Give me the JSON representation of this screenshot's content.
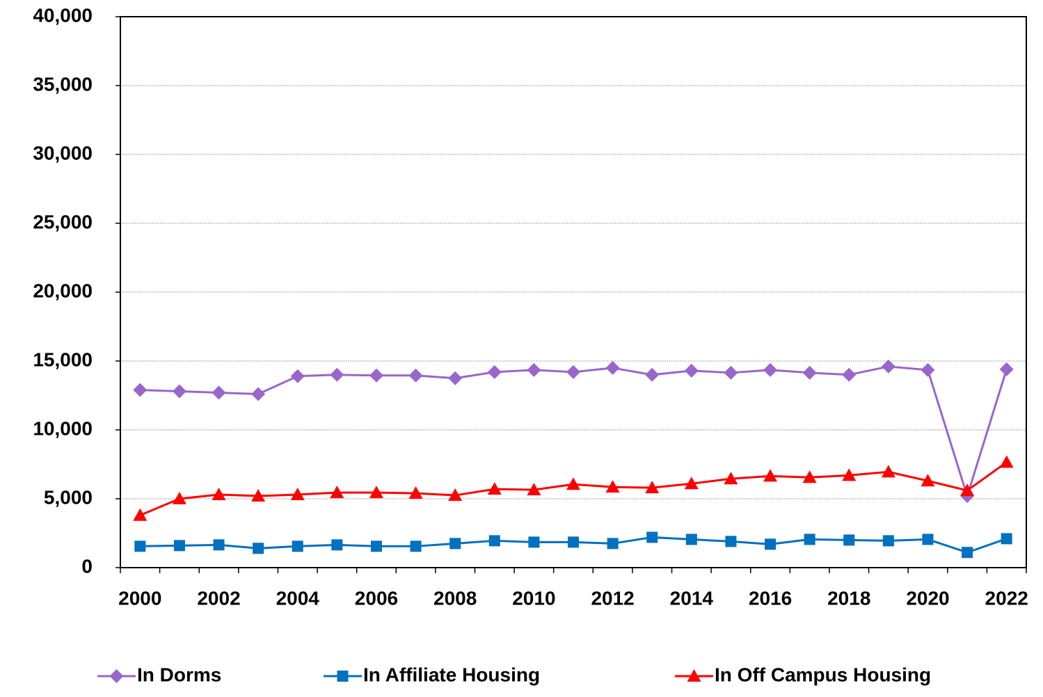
{
  "chart_data": {
    "type": "line",
    "categories": [
      "2000",
      null,
      "2002",
      null,
      "2004",
      null,
      "2006",
      null,
      "2008",
      null,
      "2010",
      null,
      "2012",
      null,
      "2014",
      null,
      "2016",
      null,
      "2018",
      null,
      "2020",
      null,
      "2022"
    ],
    "series": [
      {
        "name": "In Dorms",
        "color": "#9966cc",
        "marker": "diamond",
        "values": [
          12900,
          12800,
          12700,
          12600,
          13900,
          14000,
          13950,
          13950,
          13750,
          14200,
          14350,
          14200,
          14500,
          14000,
          14300,
          14150,
          14350,
          14150,
          14000,
          14600,
          14350,
          5200,
          14400
        ]
      },
      {
        "name": "In Affiliate Housing",
        "color": "#0070c0",
        "marker": "square",
        "values": [
          1550,
          1600,
          1650,
          1400,
          1550,
          1650,
          1550,
          1550,
          1750,
          1950,
          1850,
          1850,
          1750,
          2200,
          2050,
          1900,
          1700,
          2050,
          2000,
          1950,
          2050,
          1100,
          2100
        ]
      },
      {
        "name": "In Off Campus Housing",
        "color": "#ff0000",
        "marker": "triangle",
        "values": [
          3800,
          5000,
          5300,
          5200,
          5300,
          5450,
          5450,
          5400,
          5250,
          5700,
          5650,
          6050,
          5850,
          5800,
          6100,
          6450,
          6650,
          6550,
          6700,
          6950,
          6300,
          5600,
          7650
        ]
      }
    ],
    "ylim": [
      0,
      40000
    ],
    "yticks": [
      0,
      {
        "value": 5000,
        "label": "5,000"
      },
      {
        "value": 10000,
        "label": "10,000"
      },
      {
        "value": 15000,
        "label": "15,000"
      },
      {
        "value": 20000,
        "label": "20,000"
      },
      {
        "value": 25000,
        "label": "25,000"
      },
      {
        "value": 30000,
        "label": "30,000"
      },
      {
        "value": 35000,
        "label": "35,000"
      },
      {
        "value": 40000,
        "label": "40,000"
      }
    ],
    "grid": true,
    "legend": "bottom"
  }
}
